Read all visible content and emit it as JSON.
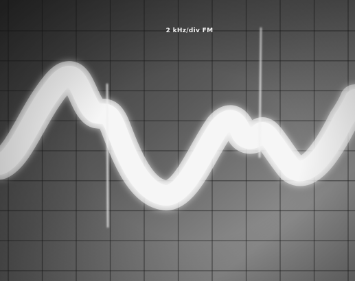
{
  "screen": {
    "caption": "2 kHz/div FM",
    "colors": {
      "screen_bg_dark": "#2c2c2c",
      "screen_bg_light": "#8a8a8a",
      "grid": "#1a1a1a",
      "trace": "#f4f4f4",
      "trace_glow": "#ffffff"
    },
    "grid": {
      "divisions_x": 10,
      "divisions_y": 8
    }
  }
}
